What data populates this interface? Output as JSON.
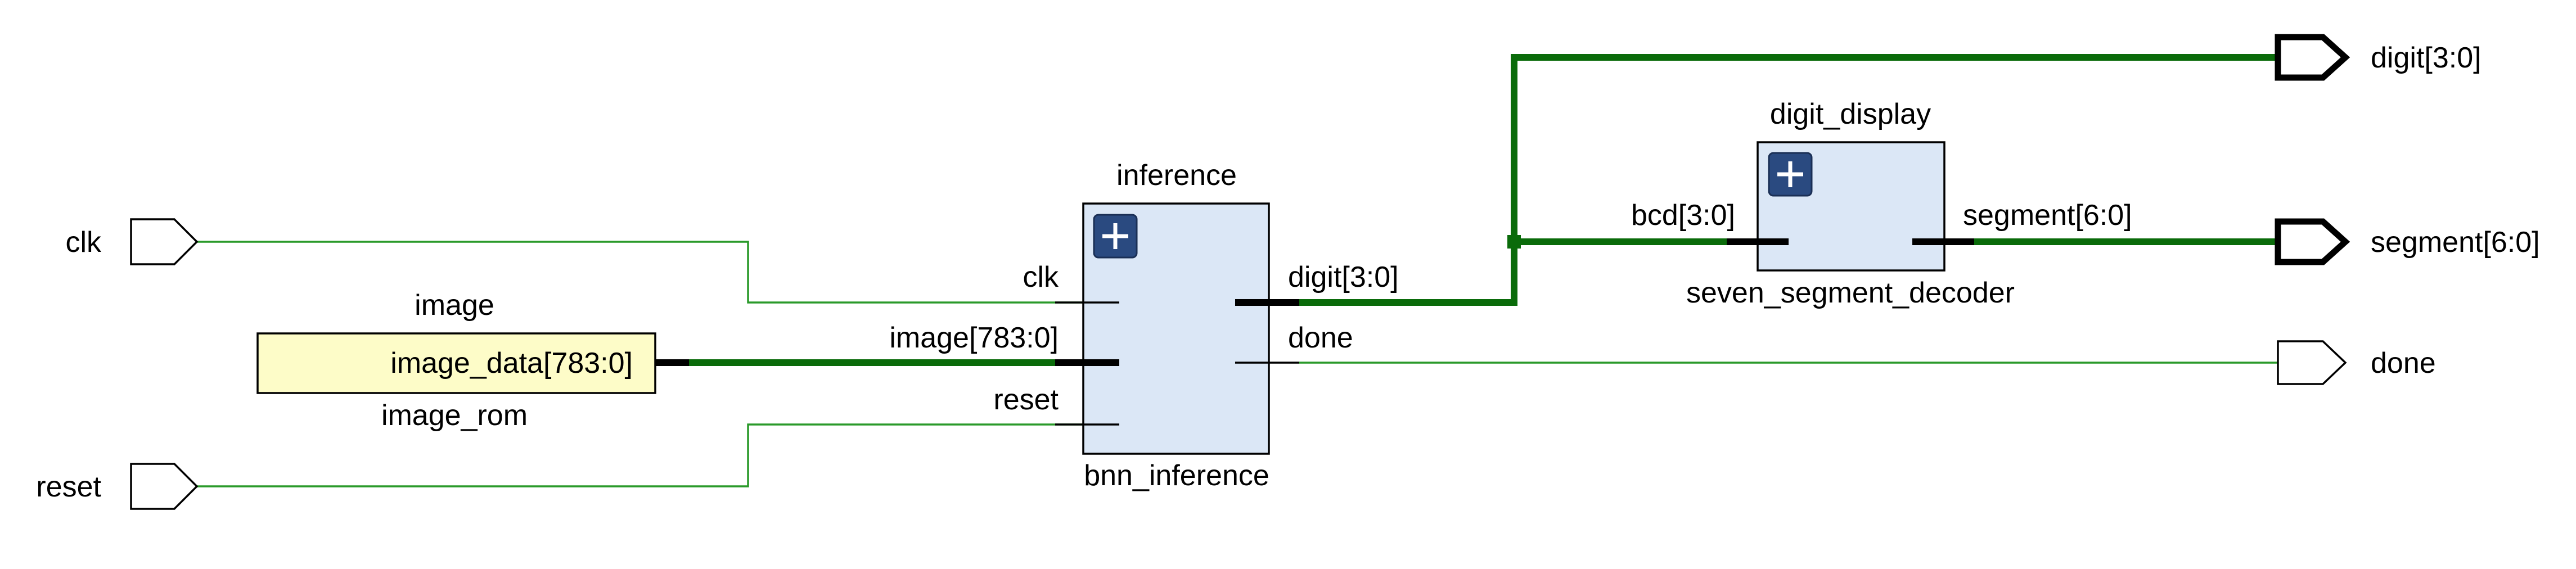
{
  "ports": {
    "inputs": [
      {
        "id": "clk",
        "label": "clk"
      },
      {
        "id": "reset",
        "label": "reset"
      }
    ],
    "outputs": [
      {
        "id": "digit",
        "label": "digit[3:0]",
        "bus": true
      },
      {
        "id": "segment",
        "label": "segment[6:0]",
        "bus": true
      },
      {
        "id": "done",
        "label": "done",
        "bus": false
      }
    ]
  },
  "rom": {
    "instance": "image",
    "module": "image_rom",
    "pin": "image_data[783:0]",
    "color": "#fdfcc8"
  },
  "inference": {
    "instance": "inference",
    "module": "bnn_inference",
    "inputs": [
      "clk",
      "image[783:0]",
      "reset"
    ],
    "outputs": [
      "digit[3:0]",
      "done"
    ],
    "expand_icon": "plus-icon",
    "color": "#dbe7f6"
  },
  "decoder": {
    "instance": "digit_display",
    "module": "seven_segment_decoder",
    "inputs": [
      "bcd[3:0]"
    ],
    "outputs": [
      "segment[6:0]"
    ],
    "expand_icon": "plus-icon",
    "color": "#dbe7f6"
  },
  "colors": {
    "net": "#2a9a2a",
    "bus": "#0a6b0a"
  }
}
